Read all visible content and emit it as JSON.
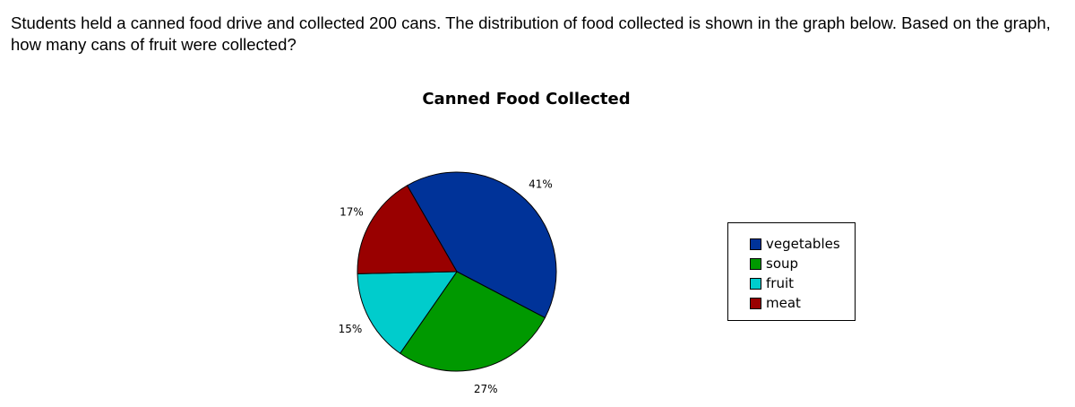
{
  "question": "Students held a canned food drive and collected 200 cans. The distribution of food collected is shown in the graph below. Based on the graph, how many cans of fruit were collected?",
  "chart_data": {
    "type": "pie",
    "title": "Canned Food Collected",
    "categories": [
      "vegetables",
      "soup",
      "fruit",
      "meat"
    ],
    "values": [
      41,
      27,
      15,
      17
    ],
    "labels": [
      "41%",
      "27%",
      "15%",
      "17%"
    ],
    "colors": [
      "#003399",
      "#009900",
      "#00cccc",
      "#990000"
    ],
    "legend_position": "right"
  }
}
